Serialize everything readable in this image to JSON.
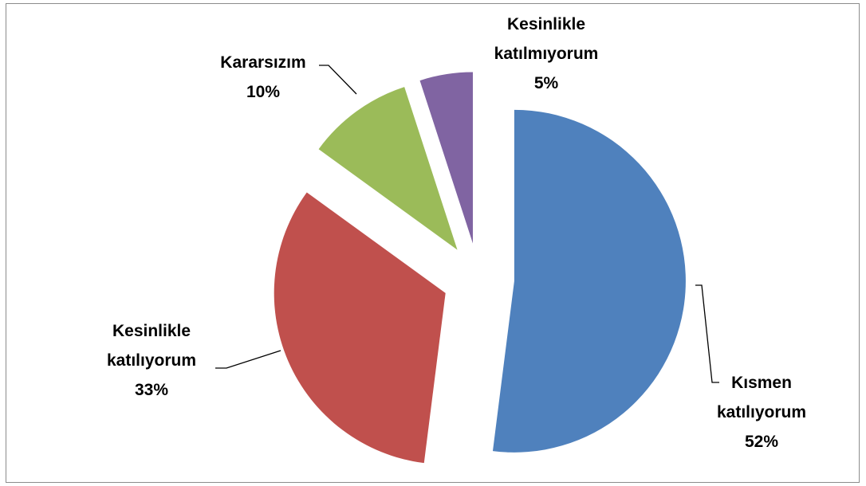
{
  "chart_data": {
    "type": "pie",
    "categories": [
      "Kısmen katılıyorum",
      "Kesinlikle katılıyorum",
      "Kararsızım",
      "Kesinlikle katılmıyorum"
    ],
    "values": [
      52,
      33,
      10,
      5
    ],
    "value_labels": [
      "52%",
      "33%",
      "10%",
      "5%"
    ],
    "colors": [
      "#4f81bd",
      "#c0504d",
      "#9bbb59",
      "#8064a2"
    ]
  }
}
